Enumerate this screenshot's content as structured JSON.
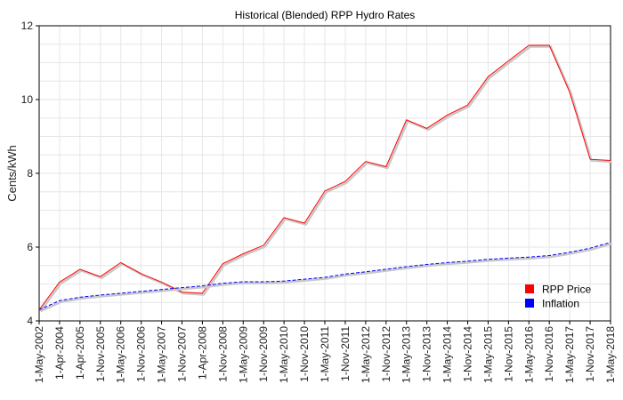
{
  "chart_data": {
    "type": "line",
    "title": "Historical (Blended) RPP Hydro Rates",
    "xlabel": "",
    "ylabel": "Cents/kWh",
    "ylim": [
      4,
      12
    ],
    "yticks": [
      4,
      6,
      8,
      10,
      12
    ],
    "grid": true,
    "legend_position": "bottom-right",
    "categories": [
      "1-May-2002",
      "1-Apr-2004",
      "1-Apr-2005",
      "1-Nov-2005",
      "1-May-2006",
      "1-Nov-2006",
      "1-May-2007",
      "1-Nov-2007",
      "1-Apr-2008",
      "1-Nov-2008",
      "1-May-2009",
      "1-Nov-2009",
      "1-May-2010",
      "1-Nov-2010",
      "1-May-2011",
      "1-Nov-2011",
      "1-May-2012",
      "1-Nov-2012",
      "1-May-2013",
      "1-Nov-2013",
      "1-May-2014",
      "1-Nov-2014",
      "1-May-2015",
      "1-Nov-2015",
      "1-May-2016",
      "1-Nov-2016",
      "1-May-2017",
      "1-Nov-2017",
      "1-May-2018"
    ],
    "series": [
      {
        "name": "RPP Price",
        "color": "#ff0000",
        "style": "solid",
        "values": [
          4.3,
          5.05,
          5.4,
          5.2,
          5.58,
          5.28,
          5.05,
          4.78,
          4.75,
          5.55,
          5.82,
          6.05,
          6.8,
          6.65,
          7.52,
          7.78,
          8.32,
          8.18,
          9.45,
          9.22,
          9.58,
          9.85,
          10.62,
          11.05,
          11.47,
          11.47,
          10.2,
          8.38,
          8.35
        ]
      },
      {
        "name": "Inflation",
        "color": "#0000ff",
        "style": "dashed",
        "values": [
          4.3,
          4.55,
          4.64,
          4.7,
          4.75,
          4.8,
          4.85,
          4.9,
          4.95,
          5.02,
          5.06,
          5.06,
          5.08,
          5.13,
          5.18,
          5.27,
          5.33,
          5.4,
          5.47,
          5.53,
          5.58,
          5.62,
          5.67,
          5.7,
          5.73,
          5.77,
          5.86,
          5.97,
          6.13
        ]
      }
    ]
  }
}
